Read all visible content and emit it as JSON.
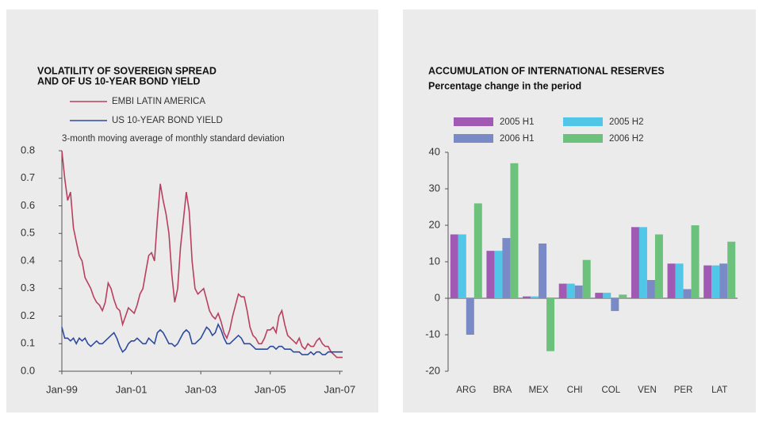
{
  "chart_data": [
    {
      "type": "line",
      "title": [
        "VOLATILITY OF SOVEREIGN SPREAD",
        "AND OF US 10-YEAR BOND YIELD"
      ],
      "annotation": "3-month moving average of monthly standard deviation",
      "x": [
        "1999-01",
        "1999-02",
        "1999-03",
        "1999-04",
        "1999-05",
        "1999-06",
        "1999-07",
        "1999-08",
        "1999-09",
        "1999-10",
        "1999-11",
        "1999-12",
        "2000-01",
        "2000-02",
        "2000-03",
        "2000-04",
        "2000-05",
        "2000-06",
        "2000-07",
        "2000-08",
        "2000-09",
        "2000-10",
        "2000-11",
        "2000-12",
        "2001-01",
        "2001-02",
        "2001-03",
        "2001-04",
        "2001-05",
        "2001-06",
        "2001-07",
        "2001-08",
        "2001-09",
        "2001-10",
        "2001-11",
        "2001-12",
        "2002-01",
        "2002-02",
        "2002-03",
        "2002-04",
        "2002-05",
        "2002-06",
        "2002-07",
        "2002-08",
        "2002-09",
        "2002-10",
        "2002-11",
        "2002-12",
        "2003-01",
        "2003-02",
        "2003-03",
        "2003-04",
        "2003-05",
        "2003-06",
        "2003-07",
        "2003-08",
        "2003-09",
        "2003-10",
        "2003-11",
        "2003-12",
        "2004-01",
        "2004-02",
        "2004-03",
        "2004-04",
        "2004-05",
        "2004-06",
        "2004-07",
        "2004-08",
        "2004-09",
        "2004-10",
        "2004-11",
        "2004-12",
        "2005-01",
        "2005-02",
        "2005-03",
        "2005-04",
        "2005-05",
        "2005-06",
        "2005-07",
        "2005-08",
        "2005-09",
        "2005-10",
        "2005-11",
        "2005-12",
        "2006-01",
        "2006-02",
        "2006-03",
        "2006-04",
        "2006-05",
        "2006-06",
        "2006-07",
        "2006-08",
        "2006-09",
        "2006-10",
        "2006-11",
        "2006-12",
        "2007-01",
        "2007-02"
      ],
      "series": [
        {
          "name": "EMBI LATIN AMERICA",
          "color": "#b8405e",
          "values": [
            0.8,
            0.7,
            0.62,
            0.65,
            0.52,
            0.47,
            0.42,
            0.4,
            0.34,
            0.32,
            0.3,
            0.27,
            0.25,
            0.24,
            0.22,
            0.25,
            0.32,
            0.3,
            0.26,
            0.23,
            0.22,
            0.17,
            0.2,
            0.23,
            0.22,
            0.21,
            0.24,
            0.28,
            0.3,
            0.36,
            0.42,
            0.43,
            0.4,
            0.55,
            0.68,
            0.62,
            0.57,
            0.5,
            0.35,
            0.25,
            0.3,
            0.45,
            0.55,
            0.65,
            0.58,
            0.4,
            0.3,
            0.28,
            0.29,
            0.3,
            0.26,
            0.22,
            0.2,
            0.19,
            0.21,
            0.18,
            0.14,
            0.12,
            0.15,
            0.2,
            0.24,
            0.28,
            0.27,
            0.27,
            0.22,
            0.16,
            0.13,
            0.12,
            0.1,
            0.1,
            0.12,
            0.15,
            0.15,
            0.16,
            0.14,
            0.2,
            0.22,
            0.17,
            0.13,
            0.12,
            0.11,
            0.1,
            0.12,
            0.09,
            0.08,
            0.1,
            0.09,
            0.09,
            0.11,
            0.12,
            0.1,
            0.09,
            0.09,
            0.07,
            0.06,
            0.05,
            0.05,
            0.05
          ]
        },
        {
          "name": "US 10-YEAR BOND YIELD",
          "color": "#2e4a9e",
          "values": [
            0.16,
            0.12,
            0.12,
            0.11,
            0.12,
            0.1,
            0.12,
            0.11,
            0.12,
            0.1,
            0.09,
            0.1,
            0.11,
            0.1,
            0.1,
            0.11,
            0.12,
            0.13,
            0.14,
            0.12,
            0.09,
            0.07,
            0.08,
            0.1,
            0.11,
            0.11,
            0.12,
            0.11,
            0.1,
            0.1,
            0.12,
            0.11,
            0.1,
            0.14,
            0.15,
            0.14,
            0.12,
            0.1,
            0.1,
            0.09,
            0.1,
            0.12,
            0.14,
            0.15,
            0.14,
            0.1,
            0.1,
            0.11,
            0.12,
            0.14,
            0.16,
            0.15,
            0.13,
            0.14,
            0.17,
            0.15,
            0.12,
            0.1,
            0.1,
            0.11,
            0.12,
            0.13,
            0.12,
            0.1,
            0.1,
            0.1,
            0.09,
            0.08,
            0.08,
            0.08,
            0.08,
            0.08,
            0.09,
            0.09,
            0.08,
            0.09,
            0.09,
            0.08,
            0.08,
            0.08,
            0.07,
            0.07,
            0.07,
            0.06,
            0.06,
            0.06,
            0.07,
            0.06,
            0.07,
            0.07,
            0.06,
            0.06,
            0.07,
            0.07,
            0.07,
            0.07,
            0.07,
            0.07
          ]
        }
      ],
      "xlim": [
        "1999-01",
        "2007-02"
      ],
      "xticks": [
        {
          "value": "1999-01",
          "label": "Jan-99"
        },
        {
          "value": "2001-01",
          "label": "Jan-01"
        },
        {
          "value": "2003-01",
          "label": "Jan-03"
        },
        {
          "value": "2005-01",
          "label": "Jan-05"
        },
        {
          "value": "2007-01",
          "label": "Jan-07"
        }
      ],
      "ylim": [
        0,
        0.8
      ],
      "yticks": [
        {
          "value": 0,
          "label": "0.0"
        },
        0.1,
        0.2,
        0.3,
        0.4,
        0.5,
        0.6,
        0.7,
        0.8
      ]
    },
    {
      "type": "bar",
      "title": [
        "ACCUMULATION OF INTERNATIONAL RESERVES"
      ],
      "subtitle": "Percentage change in the period",
      "categories": [
        "ARG",
        "BRA",
        "MEX",
        "CHI",
        "COL",
        "VEN",
        "PER",
        "LAT"
      ],
      "series": [
        {
          "name": "2005 H1",
          "color": "#a05ab4",
          "values": [
            17.5,
            13,
            0.5,
            4,
            1.5,
            19.5,
            9.5,
            9
          ]
        },
        {
          "name": "2005 H2",
          "color": "#52c6e6",
          "values": [
            17.5,
            13,
            0.5,
            4,
            1.5,
            19.5,
            9.5,
            9
          ]
        },
        {
          "name": "2006 H1",
          "color": "#7a8ac6",
          "values": [
            -10,
            16.5,
            15,
            3.5,
            -3.5,
            5,
            2.5,
            9.5
          ]
        },
        {
          "name": "2006 H2",
          "color": "#6cc27c",
          "values": [
            26,
            37,
            -14.5,
            10.5,
            1,
            17.5,
            20,
            15.5
          ]
        }
      ],
      "ylim": [
        -20,
        40
      ],
      "yticks": [
        -20,
        -10,
        0,
        10,
        20,
        30,
        40
      ]
    }
  ]
}
